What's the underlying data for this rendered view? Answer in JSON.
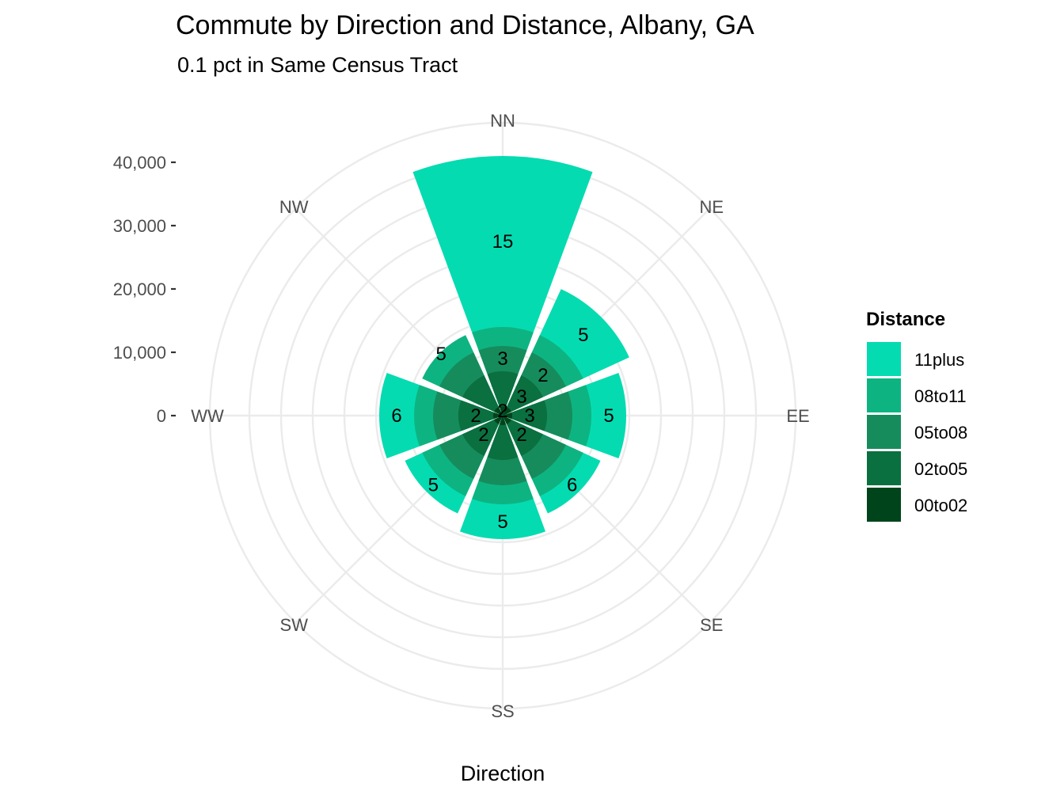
{
  "chart_data": {
    "type": "bar",
    "coord": "polar",
    "title": "Commute by Direction and Distance, Albany, GA",
    "subtitle": "0.1 pct in Same Census Tract",
    "xlabel": "Direction",
    "ylabel": "",
    "categories": [
      "NN",
      "NE",
      "EE",
      "SE",
      "SS",
      "SW",
      "WW",
      "NW"
    ],
    "ylim": [
      0,
      40000
    ],
    "yticks": [
      0,
      10000,
      20000,
      30000,
      40000
    ],
    "ytick_labels": [
      "0",
      "10,000",
      "20,000",
      "30,000",
      "40,000"
    ],
    "series": [
      {
        "name": "00to02",
        "color": "#00441b",
        "values": [
          1500,
          1500,
          1500,
          1500,
          1500,
          1500,
          1500,
          1500
        ]
      },
      {
        "name": "02to05",
        "color": "#0a7040",
        "values": [
          7000,
          7000,
          7000,
          7000,
          7000,
          7000,
          7000,
          7000
        ]
      },
      {
        "name": "05to08",
        "color": "#168c5c",
        "values": [
          11000,
          11000,
          11000,
          11000,
          11000,
          11000,
          11000,
          11000
        ]
      },
      {
        "name": "08to11",
        "color": "#0db481",
        "values": [
          14000,
          14000,
          14000,
          14000,
          14000,
          14000,
          14000,
          14000
        ]
      },
      {
        "name": "11plus",
        "color": "#05dbb1",
        "values": [
          41000,
          22000,
          19500,
          17000,
          19500,
          17000,
          19500,
          13500
        ]
      }
    ],
    "bar_labels": [
      {
        "direction": "NN",
        "distance": "11plus",
        "text": "15"
      },
      {
        "direction": "NN",
        "distance": "05to08",
        "text": "3"
      },
      {
        "direction": "NN",
        "distance": "00to02",
        "text": "2"
      },
      {
        "direction": "NE",
        "distance": "11plus",
        "text": "5"
      },
      {
        "direction": "NE",
        "distance": "05to08",
        "text": "2"
      },
      {
        "direction": "NE",
        "distance": "02to05",
        "text": "3"
      },
      {
        "direction": "EE",
        "distance": "11plus",
        "text": "5"
      },
      {
        "direction": "EE",
        "distance": "02to05",
        "text": "3"
      },
      {
        "direction": "SE",
        "distance": "02to05",
        "text": "2"
      },
      {
        "direction": "SE",
        "distance": "11plus",
        "text": "6"
      },
      {
        "direction": "SS",
        "distance": "11plus",
        "text": "5"
      },
      {
        "direction": "SW",
        "distance": "02to05",
        "text": "2"
      },
      {
        "direction": "SW",
        "distance": "11plus",
        "text": "5"
      },
      {
        "direction": "WW",
        "distance": "02to05",
        "text": "2"
      },
      {
        "direction": "WW",
        "distance": "11plus",
        "text": "6"
      },
      {
        "direction": "NW",
        "distance": "11plus",
        "text": "5"
      }
    ],
    "grid": true,
    "legend": {
      "title": "Distance",
      "placement": "right",
      "items": [
        "11plus",
        "08to11",
        "05to08",
        "02to05",
        "00to02"
      ]
    }
  }
}
